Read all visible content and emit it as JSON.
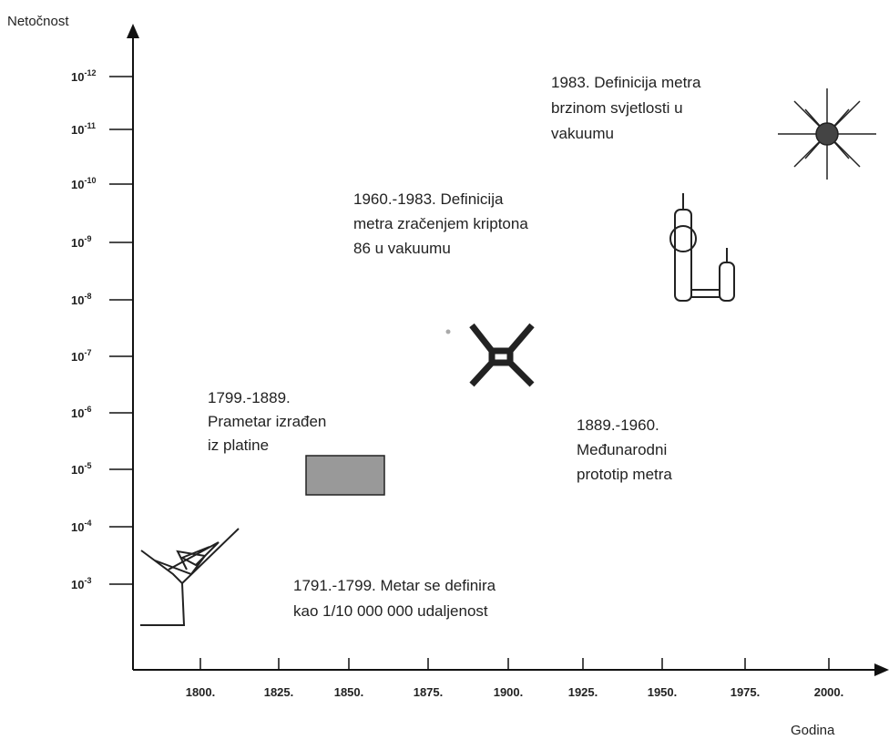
{
  "y_axis": {
    "label": "Netočnost",
    "ticks": [
      {
        "base": "10",
        "exponent": "-12"
      },
      {
        "base": "10",
        "exponent": "-11"
      },
      {
        "base": "10",
        "exponent": "-10"
      },
      {
        "base": "10",
        "exponent": "-9"
      },
      {
        "base": "10",
        "exponent": "-8"
      },
      {
        "base": "10",
        "exponent": "-7"
      },
      {
        "base": "10",
        "exponent": "-6"
      },
      {
        "base": "10",
        "exponent": "-5"
      },
      {
        "base": "10",
        "exponent": "-4"
      },
      {
        "base": "10",
        "exponent": "-3"
      }
    ]
  },
  "x_axis": {
    "label": "Godina",
    "ticks": [
      "1800.",
      "1825.",
      "1850.",
      "1875.",
      "1900.",
      "1925.",
      "1950.",
      "1975.",
      "2000."
    ]
  },
  "annotations": [
    {
      "lines": [
        "1983. Definicija metra",
        "brzinom svjetlosti u",
        "vakuumu"
      ]
    },
    {
      "lines": [
        "1960.-1983. Definicija",
        "metra zračenjem  kriptona",
        "86 u vakuumu"
      ]
    },
    {
      "lines": [
        "1799.-1889.",
        "Prametar izrađen",
        "iz platine"
      ]
    },
    {
      "lines": [
        "1889.-1960.",
        "Međunarodni",
        "prototip metra"
      ]
    },
    {
      "lines": [
        "1791.-1799. Metar se definira",
        "kao 1/10 000 000 udaljenost"
      ]
    }
  ]
}
